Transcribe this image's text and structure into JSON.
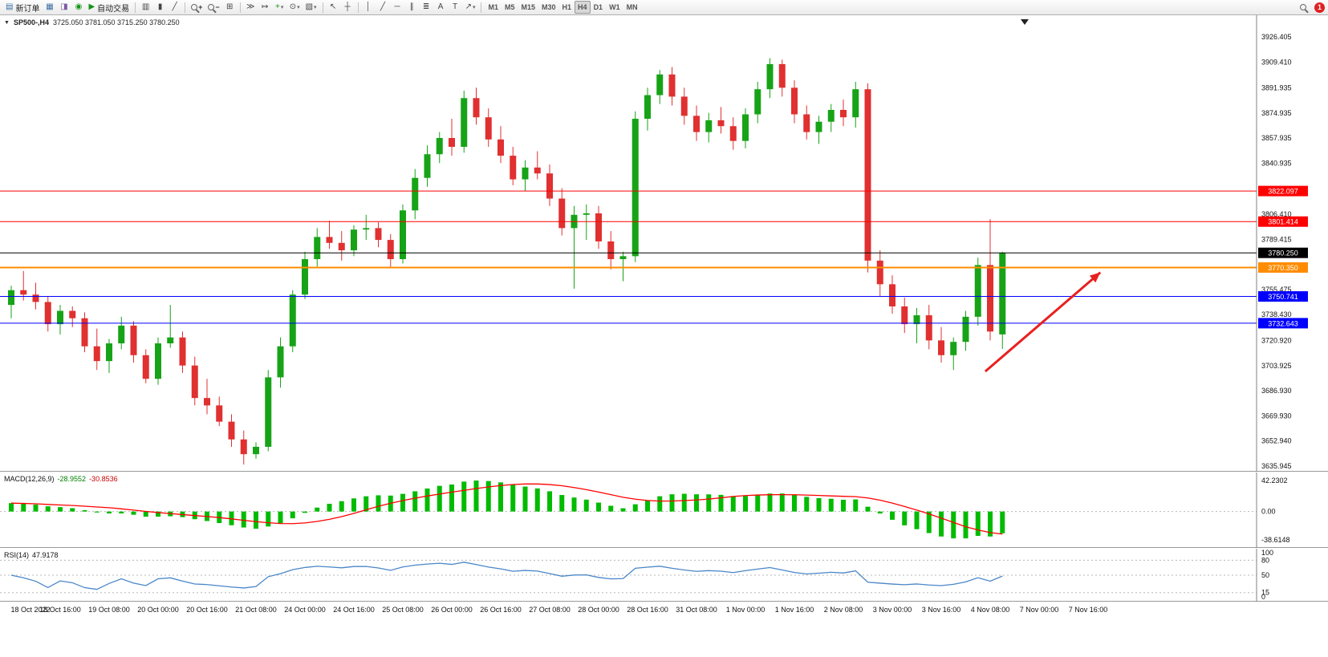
{
  "app": {
    "toolbar": {
      "new_order": "新订单",
      "autotrading": "自动交易",
      "timeframes": [
        "M1",
        "M5",
        "M15",
        "M30",
        "H1",
        "H4",
        "D1",
        "W1",
        "MN"
      ],
      "active_timeframe": "H4",
      "notification_count": "1"
    },
    "icons": {
      "new_order": "▤",
      "charts": "▦",
      "profiles": "◨",
      "community": "◉",
      "autotrade": "▶",
      "bars": "▥",
      "candles": "▮",
      "line": "╱",
      "tile": "⊞",
      "autoscroll": "≫",
      "shift": "↦",
      "indicators": "+",
      "periods": "⊙",
      "templates": "▧",
      "cursor": "↖",
      "crosshair": "┼",
      "vline": "│",
      "hline": "─",
      "trendline": "╱",
      "channel": "∥",
      "fibo": "≣",
      "text": "A",
      "label": "T",
      "arrows": "↗",
      "dropdown": "▾",
      "collapse": "▼",
      "zoom_in": "+",
      "zoom_out": "−"
    }
  },
  "chart": {
    "title": "SP500-,H4",
    "ohlc_display": "3725.050 3781.050 3715.250 3780.250"
  },
  "chart_data": {
    "type": "candlestick",
    "symbol": "SP500-",
    "timeframe": "H4",
    "current_candle": {
      "open": 3725.05,
      "high": 3781.05,
      "low": 3715.25,
      "close": 3780.25
    },
    "price_range": [
      3635.945,
      3926.405
    ],
    "price_axis_ticks": [
      "3926.405",
      "3909.410",
      "3891.935",
      "3874.935",
      "3857.935",
      "3840.935",
      "3806.410",
      "3789.415",
      "3755.475",
      "3738.430",
      "3720.920",
      "3703.925",
      "3686.930",
      "3669.930",
      "3652.940",
      "3635.945"
    ],
    "x_labels": {
      "step": 4,
      "labels": [
        "18 Oct 2022",
        "18 Oct 16:00",
        "19 Oct 08:00",
        "20 Oct 00:00",
        "20 Oct 16:00",
        "21 Oct 08:00",
        "24 Oct 00:00",
        "24 Oct 16:00",
        "25 Oct 08:00",
        "26 Oct 00:00",
        "26 Oct 16:00",
        "27 Oct 08:00",
        "28 Oct 00:00",
        "28 Oct 16:00",
        "31 Oct 08:00",
        "1 Nov 00:00",
        "1 Nov 16:00",
        "2 Nov 08:00",
        "3 Nov 00:00",
        "3 Nov 16:00",
        "4 Nov 08:00",
        "7 Nov 00:00",
        "7 Nov 16:00"
      ]
    },
    "candles": [
      [
        3745,
        3758,
        3736,
        3755
      ],
      [
        3755,
        3768,
        3748,
        3752
      ],
      [
        3752,
        3760,
        3742,
        3747
      ],
      [
        3747,
        3751,
        3727,
        3732
      ],
      [
        3732,
        3745,
        3725,
        3741
      ],
      [
        3741,
        3744,
        3730,
        3736
      ],
      [
        3736,
        3740,
        3713,
        3717
      ],
      [
        3717,
        3729,
        3701,
        3707
      ],
      [
        3707,
        3722,
        3699,
        3719
      ],
      [
        3719,
        3737,
        3715,
        3731
      ],
      [
        3731,
        3734,
        3706,
        3711
      ],
      [
        3711,
        3715,
        3692,
        3695
      ],
      [
        3695,
        3723,
        3691,
        3719
      ],
      [
        3719,
        3745,
        3716,
        3723
      ],
      [
        3723,
        3727,
        3699,
        3704
      ],
      [
        3704,
        3710,
        3677,
        3682
      ],
      [
        3682,
        3695,
        3671,
        3677
      ],
      [
        3677,
        3683,
        3663,
        3666
      ],
      [
        3666,
        3671,
        3649,
        3654
      ],
      [
        3654,
        3660,
        3637,
        3644
      ],
      [
        3644,
        3652,
        3641,
        3649
      ],
      [
        3649,
        3701,
        3646,
        3696
      ],
      [
        3696,
        3723,
        3689,
        3717
      ],
      [
        3717,
        3755,
        3713,
        3752
      ],
      [
        3752,
        3781,
        3749,
        3776
      ],
      [
        3776,
        3797,
        3771,
        3791
      ],
      [
        3791,
        3802,
        3783,
        3787
      ],
      [
        3787,
        3795,
        3775,
        3782
      ],
      [
        3782,
        3799,
        3778,
        3796
      ],
      [
        3796,
        3806,
        3789,
        3797
      ],
      [
        3797,
        3801,
        3784,
        3789
      ],
      [
        3789,
        3793,
        3770,
        3776
      ],
      [
        3776,
        3813,
        3773,
        3809
      ],
      [
        3809,
        3837,
        3803,
        3831
      ],
      [
        3831,
        3853,
        3825,
        3847
      ],
      [
        3847,
        3862,
        3841,
        3858
      ],
      [
        3858,
        3871,
        3846,
        3852
      ],
      [
        3852,
        3890,
        3848,
        3885
      ],
      [
        3885,
        3892,
        3867,
        3872
      ],
      [
        3872,
        3878,
        3852,
        3857
      ],
      [
        3857,
        3866,
        3841,
        3846
      ],
      [
        3846,
        3852,
        3826,
        3830
      ],
      [
        3830,
        3843,
        3822,
        3838
      ],
      [
        3838,
        3849,
        3830,
        3834
      ],
      [
        3834,
        3840,
        3812,
        3817
      ],
      [
        3817,
        3824,
        3792,
        3797
      ],
      [
        3797,
        3812,
        3756,
        3806
      ],
      [
        3806,
        3813,
        3789,
        3807
      ],
      [
        3807,
        3812,
        3783,
        3788
      ],
      [
        3788,
        3795,
        3769,
        3776
      ],
      [
        3776,
        3781,
        3761,
        3778
      ],
      [
        3778,
        3876,
        3774,
        3871
      ],
      [
        3871,
        3892,
        3863,
        3887
      ],
      [
        3887,
        3904,
        3881,
        3901
      ],
      [
        3901,
        3906,
        3880,
        3886
      ],
      [
        3886,
        3892,
        3867,
        3873
      ],
      [
        3873,
        3880,
        3856,
        3862
      ],
      [
        3862,
        3875,
        3855,
        3870
      ],
      [
        3870,
        3879,
        3861,
        3866
      ],
      [
        3866,
        3872,
        3850,
        3856
      ],
      [
        3856,
        3878,
        3851,
        3874
      ],
      [
        3874,
        3896,
        3868,
        3891
      ],
      [
        3891,
        3912,
        3885,
        3908
      ],
      [
        3908,
        3911,
        3886,
        3892
      ],
      [
        3892,
        3897,
        3868,
        3874
      ],
      [
        3874,
        3880,
        3857,
        3862
      ],
      [
        3862,
        3873,
        3854,
        3869
      ],
      [
        3869,
        3881,
        3862,
        3877
      ],
      [
        3877,
        3884,
        3866,
        3872
      ],
      [
        3872,
        3896,
        3865,
        3891
      ],
      [
        3891,
        3895,
        3767,
        3775
      ],
      [
        3775,
        3782,
        3751,
        3759
      ],
      [
        3759,
        3765,
        3739,
        3744
      ],
      [
        3744,
        3750,
        3726,
        3732
      ],
      [
        3732,
        3743,
        3719,
        3738
      ],
      [
        3738,
        3745,
        3715,
        3721
      ],
      [
        3721,
        3730,
        3706,
        3711
      ],
      [
        3711,
        3723,
        3701,
        3720
      ],
      [
        3720,
        3741,
        3714,
        3737
      ],
      [
        3737,
        3777,
        3731,
        3772
      ],
      [
        3772,
        3803,
        3721,
        3727
      ],
      [
        3725.05,
        3781.05,
        3715.25,
        3780.25
      ]
    ],
    "hlines": [
      {
        "price": 3822.097,
        "label": "3822.097",
        "color": "#ff0000",
        "width": 1
      },
      {
        "price": 3801.414,
        "label": "3801.414",
        "color": "#ff0000",
        "width": 1
      },
      {
        "price": 3770.35,
        "label": "3770.350",
        "color": "#ff8c00",
        "width": 2
      },
      {
        "price": 3750.741,
        "label": "3750.741",
        "color": "#0000ff",
        "width": 1
      },
      {
        "price": 3732.643,
        "label": "3732.643",
        "color": "#0000ff",
        "width": 1
      }
    ],
    "current_price_line": {
      "price": 3780.25,
      "label": "3780.250",
      "color": "#000000"
    },
    "arrow_annotation": {
      "from": {
        "index": 79.6,
        "price": 3700
      },
      "to": {
        "index": 89,
        "price": 3767
      },
      "color": "#e82020"
    },
    "indicators": {
      "macd": {
        "name": "MACD(12,26,9)",
        "value_main": "-28.9552",
        "value_signal": "-30.8536",
        "axis_ticks": [
          "42.2302",
          "0.00",
          "-38.6148"
        ],
        "histogram_color": "#00bb00",
        "signal_color": "#ff0000"
      },
      "rsi": {
        "name": "RSI(14)",
        "value": "47.9178",
        "axis_ticks": [
          "100",
          "80",
          "50",
          "15",
          "0"
        ],
        "levels": [
          80,
          50,
          15
        ],
        "line_color": "#4a86c8"
      }
    },
    "colors": {
      "bull": "#17a317",
      "bear": "#e03030",
      "background": "#ffffff"
    }
  }
}
